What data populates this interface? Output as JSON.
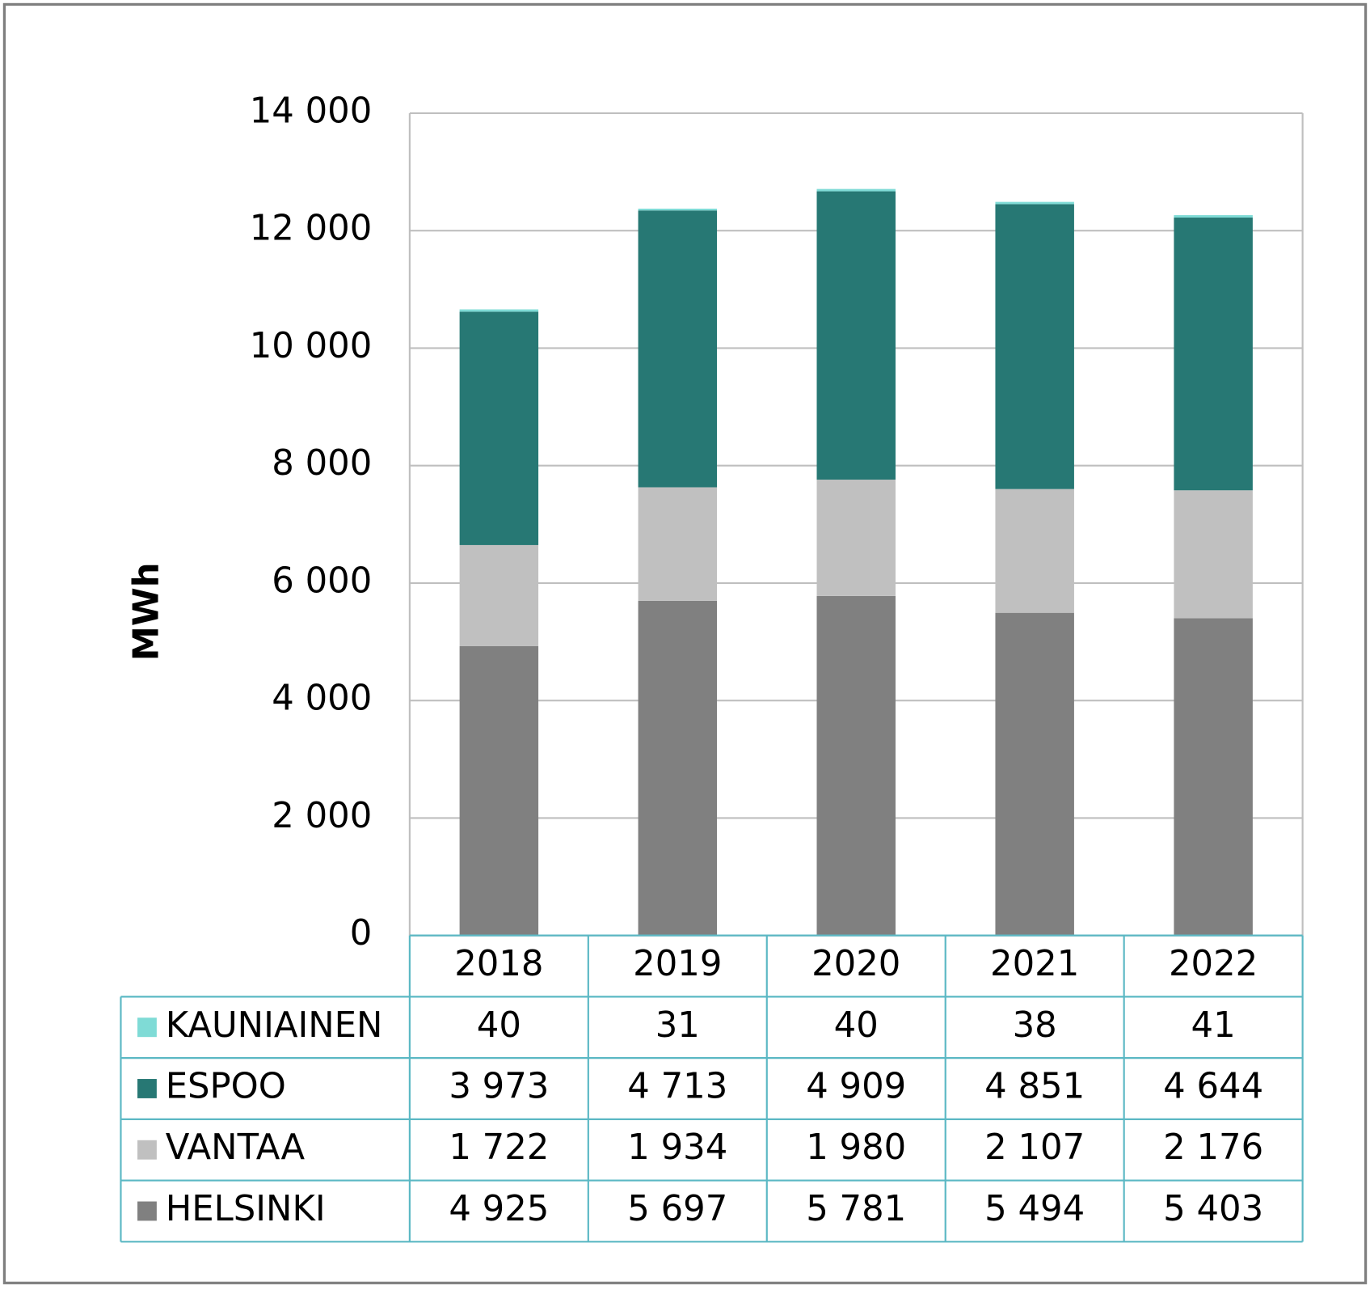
{
  "chart_data": {
    "type": "stacked-bar",
    "y_label": "MWh",
    "categories": [
      "2018",
      "2019",
      "2020",
      "2021",
      "2022"
    ],
    "series": [
      {
        "name": "HELSINKI",
        "color": "#808080",
        "values": [
          4925,
          5697,
          5781,
          5494,
          5403
        ],
        "value_labels": [
          "4 925",
          "5 697",
          "5 781",
          "5 494",
          "5 403"
        ]
      },
      {
        "name": "VANTAA",
        "color": "#c0c0c0",
        "values": [
          1722,
          1934,
          1980,
          2107,
          2176
        ],
        "value_labels": [
          "1 722",
          "1 934",
          "1 980",
          "2 107",
          "2 176"
        ]
      },
      {
        "name": "ESPOO",
        "color": "#277874",
        "values": [
          3973,
          4713,
          4909,
          4851,
          4644
        ],
        "value_labels": [
          "3 973",
          "4 713",
          "4 909",
          "4 851",
          "4 644"
        ]
      },
      {
        "name": "KAUNIAINEN",
        "color": "#7fdbd6",
        "values": [
          40,
          31,
          40,
          38,
          41
        ]
      }
    ],
    "ylim": [
      0,
      14000
    ],
    "yticks": [
      0,
      {
        "value": 2000,
        "label": "2 000"
      },
      {
        "value": 4000,
        "label": "4 000"
      },
      {
        "value": 6000,
        "label": "6 000"
      },
      {
        "value": 8000,
        "label": "8 000"
      },
      {
        "value": 10000,
        "label": "10 000"
      },
      {
        "value": 12000,
        "label": "12 000"
      },
      {
        "value": 14000,
        "label": "14 000"
      }
    ],
    "grid": true,
    "data_table": true
  }
}
